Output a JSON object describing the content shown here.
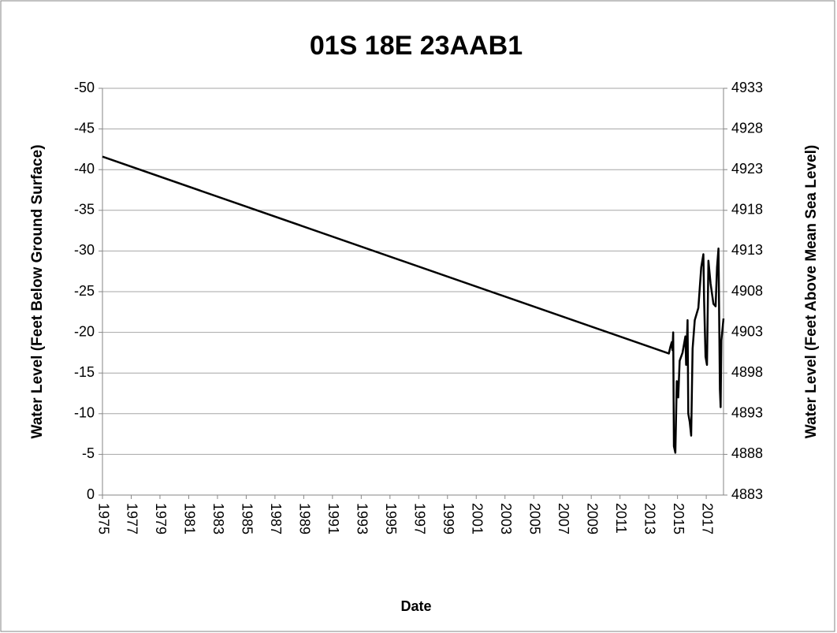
{
  "chart_data": {
    "type": "line",
    "title": "01S 18E 23AAB1",
    "x_label": "Date",
    "y_label": "Water Level (Feet Below Ground Surface)",
    "y2_label": "Water Level (Feet Above Mean Sea Level)",
    "xlim": [
      1975,
      2018.2
    ],
    "xticks": [
      1975,
      1977,
      1979,
      1981,
      1983,
      1985,
      1987,
      1989,
      1991,
      1993,
      1995,
      1997,
      1999,
      2001,
      2003,
      2005,
      2007,
      2009,
      2011,
      2013,
      2015,
      2017
    ],
    "ylim": [
      0,
      -50
    ],
    "yticks": [
      0,
      -5,
      -10,
      -15,
      -20,
      -25,
      -30,
      -35,
      -40,
      -45,
      -50
    ],
    "y2lim": [
      4883,
      4933
    ],
    "y2ticks": [
      4883,
      4888,
      4893,
      4898,
      4903,
      4908,
      4913,
      4918,
      4923,
      4928,
      4933
    ],
    "grid": true,
    "series": [
      {
        "color": "#000000",
        "x": [
          1975,
          2014.4,
          2014.5,
          2014.6,
          2014.65,
          2014.7,
          2014.75,
          2014.85,
          2014.95,
          2015.05,
          2015.15,
          2015.35,
          2015.55,
          2015.6,
          2015.7,
          2015.75,
          2015.85,
          2015.95,
          2016.05,
          2016.2,
          2016.45,
          2016.65,
          2016.8,
          2016.85,
          2016.95,
          2017.05,
          2017.15,
          2017.3,
          2017.5,
          2017.65,
          2017.75,
          2017.85,
          2017.95,
          2018.0,
          2018.05,
          2018.2
        ],
        "values": [
          -41.6,
          -17.4,
          -18.2,
          -18.8,
          -17.8,
          -20,
          -6,
          -5.2,
          -14,
          -12,
          -16.5,
          -17.5,
          -19.5,
          -16,
          -21.5,
          -10,
          -9,
          -7.3,
          -18,
          -21.5,
          -23,
          -28,
          -29.6,
          -24,
          -17,
          -16,
          -28.8,
          -26,
          -23.5,
          -23.2,
          -28,
          -30.3,
          -13,
          -10.8,
          -19,
          -21.7
        ]
      }
    ]
  }
}
